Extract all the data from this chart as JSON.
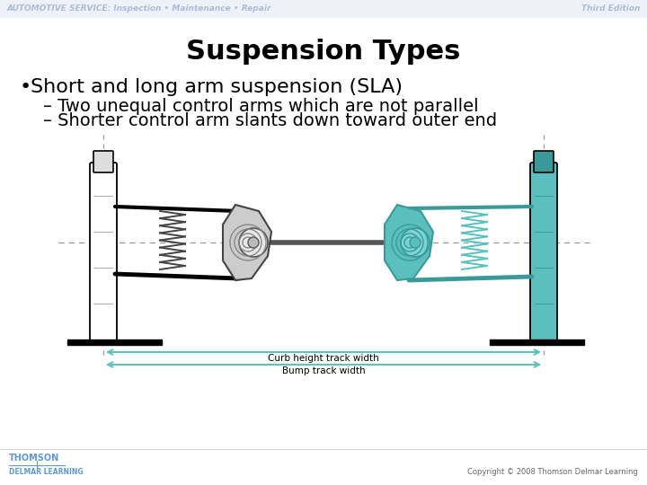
{
  "bg_color": "#ffffff",
  "header_text": "AUTOMOTIVE SERVICE: Inspection • Maintenance • Repair",
  "header_right": "Third Edition",
  "header_color": "#aabcd8",
  "title": "Suspension Types",
  "title_fontsize": 22,
  "title_color": "#000000",
  "bullet_text": "Short and long arm suspension (SLA)",
  "bullet_fontsize": 16,
  "bullet_color": "#000000",
  "sub1": "Two unequal control arms which are not parallel",
  "sub2": "Shorter control arm slants down toward outer end",
  "sub_fontsize": 14,
  "sub_color": "#000000",
  "footer_left1": "THOMSON",
  "footer_left2": "DELMAR LEARNING",
  "footer_right": "Copyright © 2008 Thomson Delmar Learning",
  "footer_color": "#5b9bd5",
  "diagram_label1": "Curb height track width",
  "diagram_label2": "Bump track width",
  "teal": "#5bbfbf",
  "teal_dark": "#3a9a9a",
  "arrow_color": "#5bbfbf",
  "dash_color": "#999999",
  "black": "#000000",
  "white": "#ffffff",
  "light_gray": "#dddddd",
  "med_gray": "#aaaaaa"
}
